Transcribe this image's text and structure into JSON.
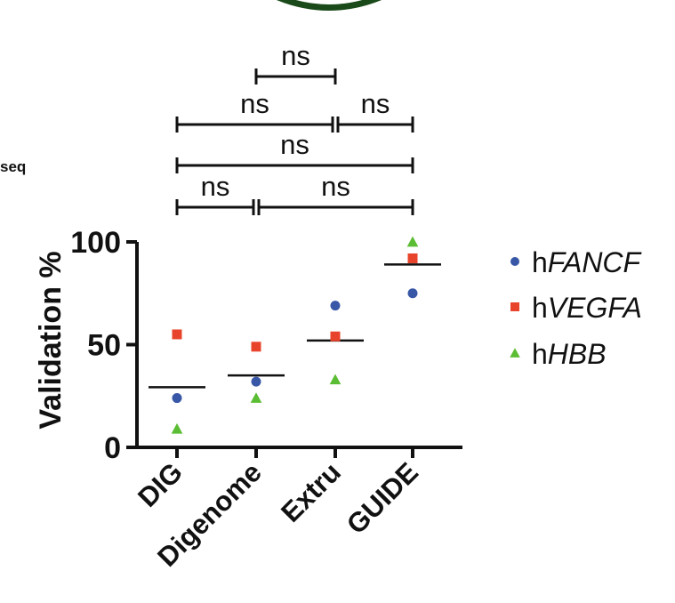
{
  "side_fragment": "seq",
  "colors": {
    "hFANCF": "#3857a6",
    "hVEGFA": "#e8442b",
    "hHBB": "#5bbd33",
    "axis": "#111111",
    "badge_ring": "#1a4a1a",
    "badge_fill": "#4fae47"
  },
  "chart_data": {
    "type": "scatter",
    "title": "",
    "xlabel": "",
    "ylabel": "Validation %",
    "ylim": [
      0,
      100
    ],
    "yticks": [
      0,
      50,
      100
    ],
    "categories": [
      "DIG",
      "Digenome",
      "Extru",
      "GUIDE"
    ],
    "series": [
      {
        "name": "hFANCF",
        "prefix": "h",
        "italic": "FANCF",
        "marker": "circle",
        "color": "#3857a6",
        "values": [
          24,
          32,
          69,
          75
        ]
      },
      {
        "name": "hVEGFA",
        "prefix": "h",
        "italic": "VEGFA",
        "marker": "square",
        "color": "#e8442b",
        "values": [
          55,
          49,
          54,
          92
        ]
      },
      {
        "name": "hHBB",
        "prefix": "h",
        "italic": "HBB",
        "marker": "triangle",
        "color": "#5bbd33",
        "values": [
          9,
          24,
          33,
          100
        ]
      }
    ],
    "means": [
      29.3,
      35,
      52,
      89
    ],
    "significance": [
      {
        "from": 1,
        "to": 2,
        "label": "ns"
      },
      {
        "from": 0,
        "to": 2,
        "label": "ns"
      },
      {
        "from": 2,
        "to": 3,
        "label": "ns"
      },
      {
        "from": 0,
        "to": 3,
        "label": "ns"
      },
      {
        "from": 0,
        "to": 1,
        "label": "ns"
      },
      {
        "from": 1,
        "to": 3,
        "label": "ns"
      }
    ],
    "legend_position": "right"
  }
}
